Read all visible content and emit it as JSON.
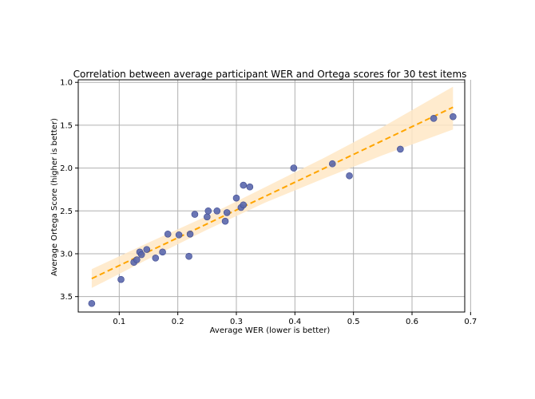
{
  "chart_data": {
    "type": "scatter",
    "title": "Correlation between average participant WER and Ortega scores for 30 test items",
    "xlabel": "Average WER (lower is better)",
    "ylabel": "Average Ortega Score (higher is better)",
    "xlim": [
      0.03,
      0.69
    ],
    "ylim": [
      3.68,
      0.97
    ],
    "y_inverted": true,
    "grid": true,
    "x_ticks": [
      "0.1",
      "0.2",
      "0.3",
      "0.4",
      "0.5",
      "0.6",
      "0.7"
    ],
    "y_ticks": [
      "1.0",
      "1.5",
      "2.0",
      "2.5",
      "3.0",
      "3.5"
    ],
    "x_tick_values": [
      0.1,
      0.2,
      0.3,
      0.4,
      0.5,
      0.6,
      0.7
    ],
    "y_tick_values": [
      1.0,
      1.5,
      2.0,
      2.5,
      3.0,
      3.5
    ],
    "points": [
      {
        "x": 0.053,
        "y": 3.58
      },
      {
        "x": 0.103,
        "y": 3.3
      },
      {
        "x": 0.125,
        "y": 3.1
      },
      {
        "x": 0.13,
        "y": 3.07
      },
      {
        "x": 0.135,
        "y": 2.98
      },
      {
        "x": 0.138,
        "y": 3.01
      },
      {
        "x": 0.147,
        "y": 2.95
      },
      {
        "x": 0.162,
        "y": 3.05
      },
      {
        "x": 0.174,
        "y": 2.98
      },
      {
        "x": 0.183,
        "y": 2.77
      },
      {
        "x": 0.202,
        "y": 2.78
      },
      {
        "x": 0.219,
        "y": 3.03
      },
      {
        "x": 0.221,
        "y": 2.77
      },
      {
        "x": 0.229,
        "y": 2.54
      },
      {
        "x": 0.25,
        "y": 2.57
      },
      {
        "x": 0.252,
        "y": 2.5
      },
      {
        "x": 0.267,
        "y": 2.5
      },
      {
        "x": 0.281,
        "y": 2.62
      },
      {
        "x": 0.284,
        "y": 2.52
      },
      {
        "x": 0.3,
        "y": 2.35
      },
      {
        "x": 0.308,
        "y": 2.46
      },
      {
        "x": 0.312,
        "y": 2.43
      },
      {
        "x": 0.312,
        "y": 2.2
      },
      {
        "x": 0.323,
        "y": 2.22
      },
      {
        "x": 0.398,
        "y": 2.0
      },
      {
        "x": 0.464,
        "y": 1.95
      },
      {
        "x": 0.493,
        "y": 2.09
      },
      {
        "x": 0.58,
        "y": 1.78
      },
      {
        "x": 0.637,
        "y": 1.42
      },
      {
        "x": 0.67,
        "y": 1.4
      }
    ],
    "regression": {
      "x": [
        0.053,
        0.67
      ],
      "y": [
        3.29,
        1.29
      ]
    },
    "confidence_band": {
      "x": [
        0.053,
        0.15,
        0.25,
        0.35,
        0.45,
        0.55,
        0.67
      ],
      "lower": [
        3.18,
        2.87,
        2.56,
        2.22,
        1.88,
        1.52,
        1.05
      ],
      "upper": [
        3.4,
        3.06,
        2.72,
        2.4,
        2.12,
        1.85,
        1.55
      ]
    },
    "colors": {
      "points": "#5a67ad",
      "point_edge": "#3f4a8f",
      "regression": "#ffa500",
      "band": "#ffe8c6",
      "grid": "#b0b0b0",
      "axes": "#000000"
    }
  }
}
